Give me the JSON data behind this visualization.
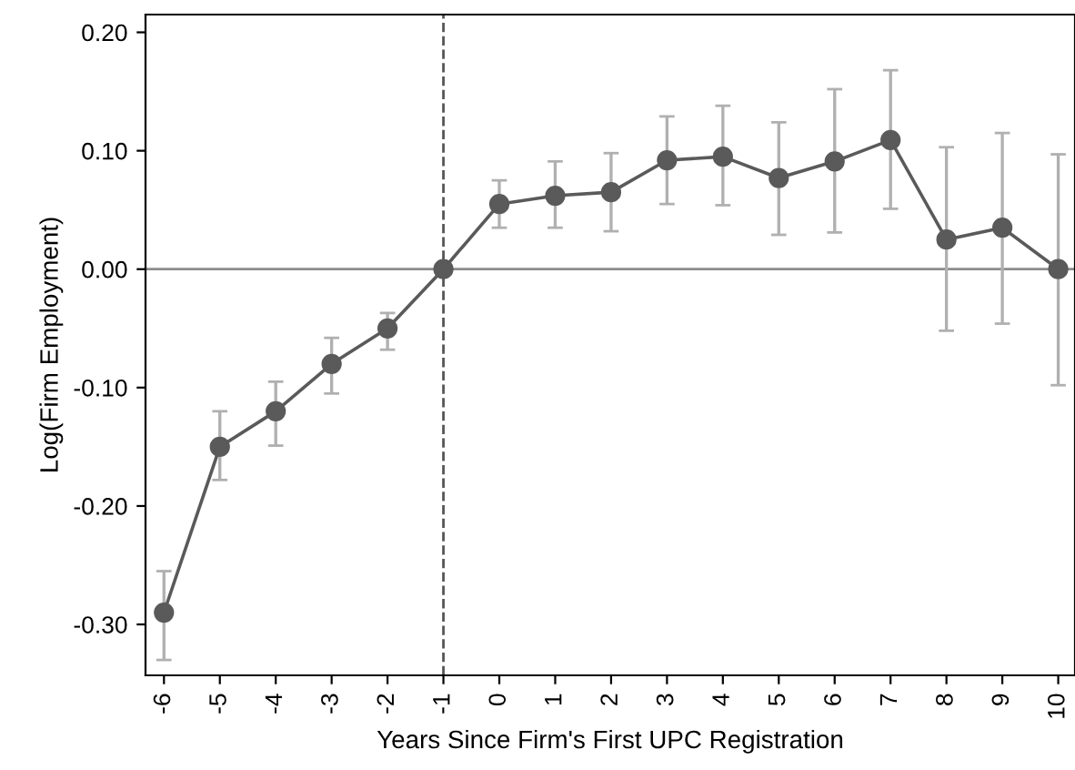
{
  "chart_data": {
    "type": "line",
    "xlabel": "Years Since Firm's First UPC Registration",
    "ylabel": "Log(Firm Employment)",
    "x": [
      -6,
      -5,
      -4,
      -3,
      -2,
      -1,
      0,
      1,
      2,
      3,
      4,
      5,
      6,
      7,
      8,
      9,
      10
    ],
    "series": [
      {
        "color": "#5a5a5a",
        "values": [
          -0.29,
          -0.15,
          -0.12,
          -0.08,
          -0.05,
          0,
          0.055,
          0.062,
          0.065,
          0.092,
          0.095,
          0.077,
          0.091,
          0.109,
          0.025,
          0.035,
          0
        ],
        "errors": [
          [
            -0.33,
            -0.255
          ],
          [
            -0.178,
            -0.12
          ],
          [
            -0.149,
            -0.095
          ],
          [
            -0.105,
            -0.058
          ],
          [
            -0.068,
            -0.037
          ],
          null,
          [
            0.035,
            0.075
          ],
          [
            0.035,
            0.091
          ],
          [
            0.032,
            0.098
          ],
          [
            0.055,
            0.129
          ],
          [
            0.054,
            0.138
          ],
          [
            0.029,
            0.124
          ],
          [
            0.031,
            0.152
          ],
          [
            0.051,
            0.168
          ],
          [
            -0.052,
            0.103
          ],
          [
            -0.046,
            0.115
          ],
          [
            -0.098,
            0.097
          ]
        ]
      }
    ],
    "marker": "circle",
    "line_style": "solid",
    "grid": false,
    "legend": false,
    "xlim": [
      -6.33,
      10.3
    ],
    "ylim": [
      -0.343,
      0.215
    ],
    "xticks": [
      -6,
      -5,
      -4,
      -3,
      -2,
      -1,
      0,
      1,
      2,
      3,
      4,
      5,
      6,
      7,
      8,
      9,
      10
    ],
    "yticks": [
      {
        "value": -0.3,
        "label": "-0.30"
      },
      {
        "value": -0.2,
        "label": "-0.20"
      },
      {
        "value": -0.1,
        "label": "-0.10"
      },
      {
        "value": 0,
        "label": "0.00"
      },
      {
        "value": 0.1,
        "label": "0.10"
      },
      {
        "value": 0.2,
        "label": "0.20"
      }
    ],
    "ref_lines": [
      {
        "axis": "y",
        "value": 0,
        "color": "#8c8c8c",
        "line_style": "solid"
      },
      {
        "axis": "x",
        "value": -1,
        "color": "#555555",
        "line_style": "dashed"
      }
    ]
  }
}
